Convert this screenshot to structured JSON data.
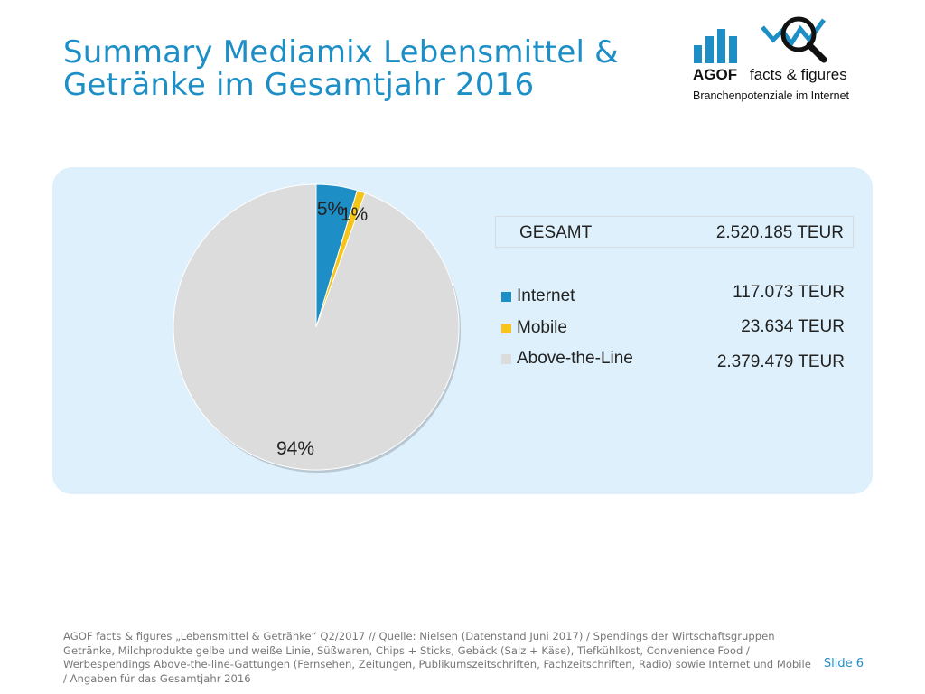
{
  "title": "Summary Mediamix Lebensmittel & Getränke im Gesamtjahr 2016",
  "logo": {
    "brand": "AGOF",
    "product": "facts & figures",
    "tagline": "Branchenpotenziale im Internet"
  },
  "total": {
    "label": "GESAMT",
    "value": "2.520.185 TEUR"
  },
  "chart_data": {
    "type": "pie",
    "slices": [
      {
        "name": "Internet",
        "value": 117073,
        "percent_label": "5%",
        "color": "#1e8fc6",
        "amount_label": "117.073 TEUR"
      },
      {
        "name": "Mobile",
        "value": 23634,
        "percent_label": "1%",
        "color": "#f5c518",
        "amount_label": "23.634 TEUR"
      },
      {
        "name": "Above-the-Line",
        "value": 2379479,
        "percent_label": "94%",
        "color": "#dcdcdc",
        "amount_label": "2.379.479 TEUR"
      }
    ],
    "legend_position": "right"
  },
  "footnote": "AGOF facts & figures „Lebensmittel & Getränke“ Q2/2017 // Quelle: Nielsen (Datenstand Juni 2017) / Spendings der Wirtschaftsgruppen Getränke, Milchprodukte gelbe und weiße Linie, Süßwaren, Chips + Sticks, Gebäck (Salz + Käse), Tiefkühlkost, Convenience Food / Werbespendings Above-the-line-Gattungen (Fernsehen, Zeitungen, Publikumszeitschriften, Fachzeitschriften, Radio) sowie Internet und Mobile / Angaben für das Gesamtjahr 2016",
  "slide_number": "Slide 6"
}
